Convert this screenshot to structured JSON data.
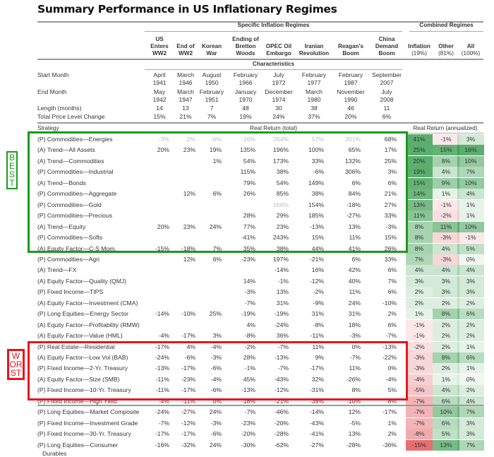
{
  "title": "Summary Performance in US Inflationary Regimes",
  "group_headers": {
    "specific": "Specific Inflation Regimes",
    "combined": "Combined Regimes",
    "characteristics": "Characteristics",
    "strategy": "Strategy",
    "real_total": "Real Return (total)",
    "real_annualized": "Real Return (annualized)"
  },
  "columns": [
    [
      "US",
      "Enters",
      "WW2"
    ],
    [
      "End of",
      "WW2"
    ],
    [
      "Korean",
      "War"
    ],
    [
      "Ending of",
      "Bretton",
      "Woods"
    ],
    [
      "OPEC Oil",
      "Embargo"
    ],
    [
      "Iranian",
      "Revolution"
    ],
    [
      "Reagan's",
      "Boom"
    ],
    [
      "China",
      "Demand",
      "Boom"
    ],
    [
      "Inflation",
      "(19%)"
    ],
    [
      "Other",
      "(81%)"
    ],
    [
      "All",
      "(100%)"
    ]
  ],
  "characteristics": [
    {
      "label": "Start Month",
      "values": [
        [
          "April",
          "1941"
        ],
        [
          "March",
          "1946"
        ],
        [
          "August",
          "1950"
        ],
        [
          "February",
          "1966"
        ],
        [
          "July",
          "1972"
        ],
        [
          "February",
          "1977"
        ],
        [
          "February",
          "1987"
        ],
        [
          "September",
          "2007"
        ]
      ]
    },
    {
      "label": "End Month",
      "values": [
        [
          "May",
          "1942"
        ],
        [
          "March",
          "1947"
        ],
        [
          "February",
          "1951"
        ],
        [
          "January",
          "1970"
        ],
        [
          "December",
          "1974"
        ],
        [
          "March",
          "1980"
        ],
        [
          "November",
          "1990"
        ],
        [
          "July",
          "2008"
        ]
      ]
    },
    {
      "label": "Length (months)",
      "values": [
        [
          "14"
        ],
        [
          "13"
        ],
        [
          "7"
        ],
        [
          "48"
        ],
        [
          "30"
        ],
        [
          "38"
        ],
        [
          "46"
        ],
        [
          "11"
        ]
      ]
    },
    {
      "label": "Total Price Level Change",
      "values": [
        [
          "15%"
        ],
        [
          "21%"
        ],
        [
          "7%"
        ],
        [
          "19%"
        ],
        [
          "24%"
        ],
        [
          "37%"
        ],
        [
          "20%"
        ],
        [
          "6%"
        ]
      ]
    }
  ],
  "chart_data": {
    "type": "table",
    "title": "Summary Performance in US Inflationary Regimes",
    "colors": {
      "positive": "#3a9d4f",
      "negative": "#e0474c",
      "best_box": "#1a9a1a",
      "worst_box": "#e8141c"
    },
    "labels": {
      "best": "BEST",
      "worst": "WORST"
    },
    "rows": [
      {
        "strategy": "(P) Commodities—Energies",
        "total": [
          "-3%",
          "2%",
          "-6%",
          "-16%",
          "264%",
          "57%",
          "201%",
          "68%"
        ],
        "muted": [
          0,
          1,
          2,
          3,
          4,
          5,
          6
        ],
        "annualized": [
          "41%",
          "-1%",
          "3%"
        ]
      },
      {
        "strategy": "(A) Trend—All Assets",
        "total": [
          "20%",
          "23%",
          "19%",
          "135%",
          "196%",
          "100%",
          "65%",
          "17%"
        ],
        "annualized": [
          "25%",
          "15%",
          "16%"
        ]
      },
      {
        "strategy": "(A) Trend—Commodities",
        "total": [
          "",
          "",
          "1%",
          "54%",
          "173%",
          "33%",
          "132%",
          "25%"
        ],
        "annualized": [
          "20%",
          "8%",
          "10%"
        ]
      },
      {
        "strategy": "(P) Commodities—Industrial",
        "total": [
          "",
          "",
          "",
          "115%",
          "38%",
          "-6%",
          "306%",
          "3%"
        ],
        "annualized": [
          "19%",
          "4%",
          "7%"
        ]
      },
      {
        "strategy": "(A) Trend—Bonds",
        "total": [
          "",
          "",
          "",
          "79%",
          "54%",
          "149%",
          "6%",
          "6%"
        ],
        "annualized": [
          "15%",
          "9%",
          "10%"
        ]
      },
      {
        "strategy": "(P) Commodities—Aggregate",
        "total": [
          "",
          "12%",
          "6%",
          "26%",
          "85%",
          "38%",
          "84%",
          "21%"
        ],
        "annualized": [
          "14%",
          "1%",
          "4%"
        ]
      },
      {
        "strategy": "(P) Commodities—Gold",
        "total": [
          "",
          "",
          "",
          "",
          "166%",
          "154%",
          "-18%",
          "27%"
        ],
        "muted": [
          4
        ],
        "annualized": [
          "13%",
          "-1%",
          "1%"
        ]
      },
      {
        "strategy": "(P) Commodities—Precious",
        "total": [
          "",
          "",
          "",
          "28%",
          "29%",
          "185%",
          "-27%",
          "33%"
        ],
        "annualized": [
          "11%",
          "-2%",
          "1%"
        ]
      },
      {
        "strategy": "(A) Trend—Equity",
        "total": [
          "20%",
          "23%",
          "24%",
          "77%",
          "23%",
          "-13%",
          "13%",
          "-3%"
        ],
        "annualized": [
          "8%",
          "11%",
          "10%"
        ]
      },
      {
        "strategy": "(P) Commodities—Softs",
        "total": [
          "",
          "",
          "",
          "-41%",
          "243%",
          "15%",
          "11%",
          "15%"
        ],
        "annualized": [
          "8%",
          "-3%",
          "-1%"
        ]
      },
      {
        "strategy": "(A) Equity Factor—C-S Mom.",
        "total": [
          "-15%",
          "-18%",
          "7%",
          "35%",
          "38%",
          "44%",
          "41%",
          "26%"
        ],
        "annualized": [
          "8%",
          "4%",
          "5%"
        ]
      },
      {
        "strategy": "(P) Commodities—Agri",
        "total": [
          "",
          "12%",
          "6%",
          "-23%",
          "197%",
          "-21%",
          "6%",
          "33%"
        ],
        "annualized": [
          "7%",
          "-3%",
          "0%"
        ]
      },
      {
        "strategy": "(A) Trend—FX",
        "total": [
          "",
          "",
          "",
          "",
          "-14%",
          "16%",
          "42%",
          "6%"
        ],
        "annualized": [
          "4%",
          "4%",
          "4%"
        ]
      },
      {
        "strategy": "(A) Equity Factor—Quality (QMJ)",
        "total": [
          "",
          "",
          "",
          "14%",
          "-1%",
          "-12%",
          "40%",
          "7%"
        ],
        "annualized": [
          "3%",
          "3%",
          "3%"
        ]
      },
      {
        "strategy": "(P) Fixed Income—TIPS",
        "total": [
          "",
          "",
          "",
          "-3%",
          "13%",
          "-2%",
          "11%",
          "6%"
        ],
        "annualized": [
          "2%",
          "3%",
          "3%"
        ]
      },
      {
        "strategy": "(A) Equity Factor—Investment (CMA)",
        "total": [
          "",
          "",
          "",
          "-7%",
          "31%",
          "-9%",
          "24%",
          "-10%"
        ],
        "annualized": [
          "2%",
          "2%",
          "2%"
        ]
      },
      {
        "strategy": "(P) Long Equities—Energy Sector",
        "total": [
          "-14%",
          "-10%",
          "25%",
          "-19%",
          "-19%",
          "31%",
          "31%",
          "2%"
        ],
        "annualized": [
          "1%",
          "8%",
          "6%"
        ]
      },
      {
        "strategy": "(A) Equity Factor—Profitability (RMW)",
        "total": [
          "",
          "",
          "",
          "4%",
          "-24%",
          "-8%",
          "18%",
          "6%"
        ],
        "annualized": [
          "-1%",
          "2%",
          "2%"
        ]
      },
      {
        "strategy": "(A) Equity Factor—Value (HML)",
        "total": [
          "-4%",
          "-17%",
          "3%",
          "-8%",
          "36%",
          "-11%",
          "-3%",
          "-7%"
        ],
        "annualized": [
          "-1%",
          "2%",
          "2%"
        ]
      },
      {
        "strategy": "(P) Real Estate—Residential",
        "total": [
          "-17%",
          "4%",
          "-4%",
          "-2%",
          "-7%",
          "11%",
          "0%",
          "-13%"
        ],
        "annualized": [
          "-2%",
          "2%",
          "1%"
        ]
      },
      {
        "strategy": "(A) Equity Factor—Low Vol (BAB)",
        "total": [
          "-24%",
          "-6%",
          "-3%",
          "28%",
          "-13%",
          "9%",
          "-7%",
          "-22%"
        ],
        "annualized": [
          "-3%",
          "8%",
          "6%"
        ]
      },
      {
        "strategy": "(P) Fixed Income—2-Yr. Treasury",
        "total": [
          "-13%",
          "-17%",
          "-6%",
          "-1%",
          "-7%",
          "-17%",
          "11%",
          "0%"
        ],
        "annualized": [
          "-3%",
          "2%",
          "1%"
        ]
      },
      {
        "strategy": "(A) Equity Factor—Size (SMB)",
        "total": [
          "-11%",
          "-23%",
          "-4%",
          "45%",
          "-43%",
          "32%",
          "-26%",
          "-4%"
        ],
        "annualized": [
          "-4%",
          "1%",
          "0%"
        ]
      },
      {
        "strategy": "(P) Fixed Income—10-Yr. Treasury",
        "total": [
          "-11%",
          "-17%",
          "-6%",
          "-13%",
          "-12%",
          "-31%",
          "8%",
          "5%"
        ],
        "annualized": [
          "-5%",
          "4%",
          "2%"
        ]
      },
      {
        "strategy": "(P) Fixed Income—High Yield",
        "total": [
          "-4%",
          "-11%",
          "0%",
          "-18%",
          "-21%",
          "-38%",
          "-10%",
          "-8%"
        ],
        "annualized": [
          "-7%",
          "6%",
          "4%"
        ]
      },
      {
        "strategy": "(P) Long Equities—Market Composite",
        "total": [
          "-24%",
          "-27%",
          "24%",
          "-7%",
          "-46%",
          "-14%",
          "12%",
          "-17%"
        ],
        "annualized": [
          "-7%",
          "10%",
          "7%"
        ]
      },
      {
        "strategy": "(P) Fixed Income—Investment Grade",
        "total": [
          "-7%",
          "-12%",
          "-3%",
          "-23%",
          "-20%",
          "-43%",
          "-5%",
          "1%"
        ],
        "annualized": [
          "-7%",
          "6%",
          "3%"
        ]
      },
      {
        "strategy": "(P) Fixed Income—30-Yr. Treasury",
        "total": [
          "-17%",
          "-17%",
          "-6%",
          "-20%",
          "-28%",
          "-41%",
          "13%",
          "2%"
        ],
        "annualized": [
          "-8%",
          "5%",
          "3%"
        ]
      },
      {
        "strategy": "(P) Long Equities—Consumer",
        "strategy_cont": "Durables",
        "total": [
          "-16%",
          "-32%",
          "24%",
          "-30%",
          "-62%",
          "-27%",
          "-28%",
          "-36%"
        ],
        "annualized": [
          "-15%",
          "13%",
          "7%"
        ]
      }
    ]
  }
}
